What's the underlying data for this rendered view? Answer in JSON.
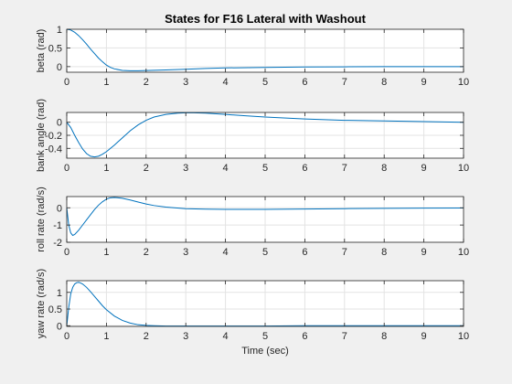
{
  "chart_data": [
    {
      "type": "line",
      "title": "States for F16 Lateral with Washout",
      "xlabel": "",
      "ylabel": "beta (rad)",
      "xlim": [
        0,
        10
      ],
      "ylim": [
        -0.15,
        1
      ],
      "xticks": [
        "0",
        "1",
        "2",
        "3",
        "4",
        "5",
        "6",
        "7",
        "8",
        "9",
        "10"
      ],
      "yticks": [
        {
          "v": 0,
          "label": "0"
        },
        {
          "v": 0.5,
          "label": "0.5"
        },
        {
          "v": 1,
          "label": "1"
        }
      ],
      "grid": true,
      "series": [
        {
          "color": "#0072BD",
          "x": [
            0,
            0.1,
            0.2,
            0.3,
            0.4,
            0.5,
            0.6,
            0.7,
            0.8,
            0.9,
            1.0,
            1.1,
            1.2,
            1.4,
            1.6,
            1.8,
            2.0,
            2.5,
            3.0,
            3.5,
            4.0,
            5.0,
            6.0,
            7.0,
            8.0,
            9.0,
            10.0
          ],
          "y": [
            1.0,
            0.98,
            0.92,
            0.83,
            0.72,
            0.6,
            0.47,
            0.35,
            0.23,
            0.13,
            0.04,
            -0.02,
            -0.06,
            -0.1,
            -0.11,
            -0.11,
            -0.105,
            -0.09,
            -0.07,
            -0.05,
            -0.035,
            -0.02,
            -0.01,
            -0.005,
            0.0,
            0.0,
            0.0
          ]
        }
      ]
    },
    {
      "type": "line",
      "title": "",
      "xlabel": "",
      "ylabel": "bank angle (rad)",
      "xlim": [
        0,
        10
      ],
      "ylim": [
        -0.55,
        0.15
      ],
      "xticks": [
        "0",
        "1",
        "2",
        "3",
        "4",
        "5",
        "6",
        "7",
        "8",
        "9",
        "10"
      ],
      "yticks": [
        {
          "v": 0,
          "label": "0"
        },
        {
          "v": -0.2,
          "label": "-0.2"
        },
        {
          "v": -0.4,
          "label": "-0.4"
        }
      ],
      "grid": true,
      "series": [
        {
          "color": "#0072BD",
          "x": [
            0,
            0.1,
            0.2,
            0.3,
            0.4,
            0.5,
            0.6,
            0.7,
            0.8,
            0.9,
            1.0,
            1.2,
            1.4,
            1.6,
            1.8,
            2.0,
            2.2,
            2.5,
            2.8,
            3.0,
            3.2,
            3.5,
            4.0,
            4.5,
            5.0,
            6.0,
            7.0,
            8.0,
            9.0,
            10.0
          ],
          "y": [
            0.0,
            -0.08,
            -0.2,
            -0.31,
            -0.41,
            -0.48,
            -0.52,
            -0.53,
            -0.52,
            -0.49,
            -0.45,
            -0.35,
            -0.24,
            -0.13,
            -0.04,
            0.03,
            0.08,
            0.12,
            0.14,
            0.145,
            0.145,
            0.14,
            0.12,
            0.1,
            0.08,
            0.05,
            0.03,
            0.02,
            0.01,
            0.0
          ]
        }
      ]
    },
    {
      "type": "line",
      "title": "",
      "xlabel": "",
      "ylabel": "roll rate (rad/s)",
      "xlim": [
        0,
        10
      ],
      "ylim": [
        -2,
        0.65
      ],
      "xticks": [
        "0",
        "1",
        "2",
        "3",
        "4",
        "5",
        "6",
        "7",
        "8",
        "9",
        "10"
      ],
      "yticks": [
        {
          "v": 0,
          "label": "0"
        },
        {
          "v": -1,
          "label": "-1"
        },
        {
          "v": -2,
          "label": "-2"
        }
      ],
      "grid": true,
      "series": [
        {
          "color": "#0072BD",
          "x": [
            0,
            0.05,
            0.1,
            0.15,
            0.2,
            0.3,
            0.4,
            0.5,
            0.6,
            0.7,
            0.8,
            0.9,
            1.0,
            1.1,
            1.2,
            1.3,
            1.4,
            1.6,
            1.8,
            2.0,
            2.2,
            2.5,
            3.0,
            3.5,
            4.0,
            5.0,
            6.0,
            7.0,
            8.0,
            9.0,
            10.0
          ],
          "y": [
            0.0,
            -1.0,
            -1.45,
            -1.6,
            -1.55,
            -1.3,
            -1.0,
            -0.7,
            -0.4,
            -0.1,
            0.15,
            0.35,
            0.5,
            0.58,
            0.6,
            0.58,
            0.55,
            0.45,
            0.33,
            0.22,
            0.13,
            0.04,
            -0.05,
            -0.08,
            -0.09,
            -0.09,
            -0.07,
            -0.05,
            -0.03,
            -0.02,
            -0.01
          ]
        }
      ]
    },
    {
      "type": "line",
      "title": "",
      "xlabel": "Time (sec)",
      "ylabel": "yaw rate (rad/s)",
      "xlim": [
        0,
        10
      ],
      "ylim": [
        -0.02,
        1.35
      ],
      "xticks": [
        "0",
        "1",
        "2",
        "3",
        "4",
        "5",
        "6",
        "7",
        "8",
        "9",
        "10"
      ],
      "yticks": [
        {
          "v": 0,
          "label": "0"
        },
        {
          "v": 0.5,
          "label": "0.5"
        },
        {
          "v": 1,
          "label": "1"
        }
      ],
      "grid": true,
      "series": [
        {
          "color": "#0072BD",
          "x": [
            0,
            0.05,
            0.1,
            0.15,
            0.2,
            0.25,
            0.3,
            0.35,
            0.4,
            0.5,
            0.6,
            0.7,
            0.8,
            0.9,
            1.0,
            1.2,
            1.4,
            1.6,
            1.8,
            2.0,
            2.2,
            2.5,
            3.0,
            4.0,
            5.0,
            6.0,
            7.0,
            8.0,
            9.0,
            10.0
          ],
          "y": [
            0.0,
            0.55,
            0.95,
            1.15,
            1.25,
            1.29,
            1.3,
            1.28,
            1.25,
            1.15,
            1.02,
            0.88,
            0.74,
            0.6,
            0.48,
            0.29,
            0.16,
            0.08,
            0.03,
            0.01,
            0.0,
            -0.01,
            -0.01,
            -0.01,
            -0.01,
            0.0,
            0.0,
            0.0,
            0.0,
            0.0
          ]
        }
      ]
    }
  ]
}
